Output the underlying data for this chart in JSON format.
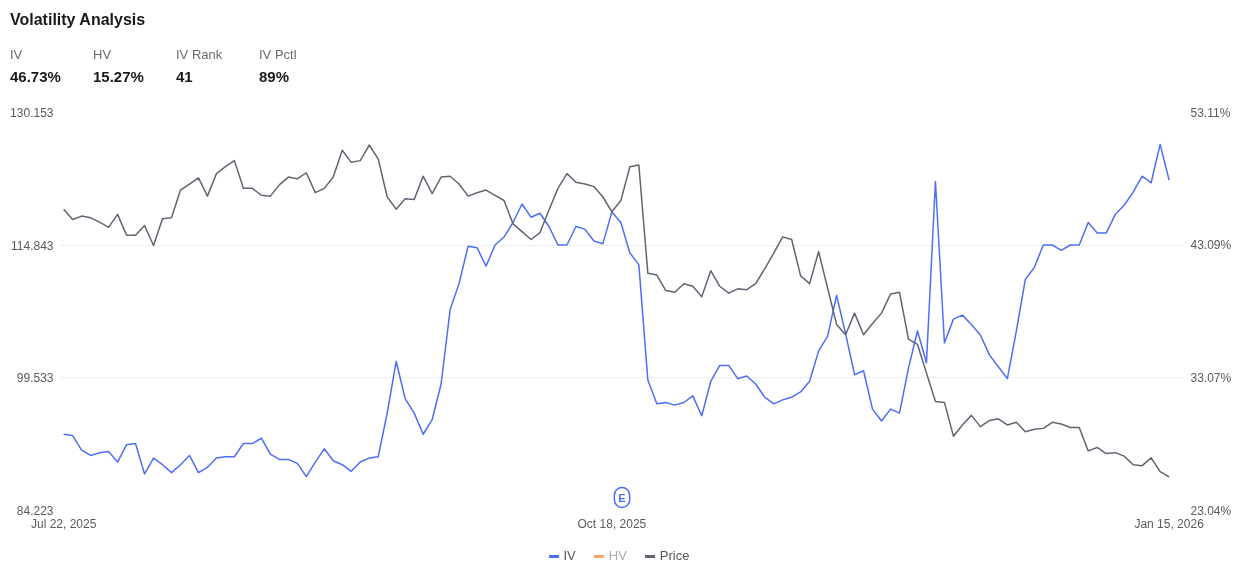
{
  "chart_data": {
    "type": "line",
    "title": "Volatility Analysis",
    "annotations": [
      "IV",
      "46.73%",
      "HV",
      "15.27%",
      "IV Rank",
      "41",
      "IV Pctl",
      "89%",
      {
        "text": "E"
      }
    ],
    "categories": [
      "Jul 22, 2025",
      null,
      null,
      null,
      null,
      null,
      null,
      null,
      null,
      null,
      null,
      null,
      null,
      null,
      null,
      null,
      null,
      null,
      null,
      null,
      null,
      null,
      null,
      null,
      null,
      null,
      null,
      null,
      null,
      null,
      null,
      null,
      null,
      null,
      null,
      null,
      null,
      null,
      null,
      null,
      null,
      null,
      null,
      null,
      null,
      null,
      null,
      null,
      null,
      null,
      null,
      null,
      null,
      null,
      null,
      null,
      null,
      null,
      null,
      null,
      null,
      "Oct 18, 2025",
      null,
      null,
      null,
      null,
      null,
      null,
      null,
      null,
      null,
      null,
      null,
      null,
      null,
      null,
      null,
      null,
      null,
      null,
      null,
      null,
      null,
      null,
      null,
      null,
      null,
      null,
      null,
      null,
      null,
      null,
      null,
      null,
      null,
      null,
      null,
      null,
      null,
      null,
      null,
      null,
      null,
      null,
      null,
      null,
      null,
      null,
      null,
      null,
      null,
      null,
      null,
      null,
      null,
      null,
      null,
      null,
      null,
      null,
      null,
      null,
      null,
      "Jan 15, 2026"
    ],
    "ylim": [
      84.223,
      130.153
    ],
    "yticks": [
      84.223,
      99.533,
      114.843,
      130.153
    ],
    "y2lim": [
      23.04,
      53.11
    ],
    "y2ticks": [
      {
        "value": 23.04,
        "label": "23.04%"
      },
      {
        "value": 33.07,
        "label": "33.07%"
      },
      {
        "value": 43.09,
        "label": "43.09%"
      },
      {
        "value": 53.11,
        "label": "53.11%"
      }
    ],
    "series": [
      {
        "name": "IV",
        "color": "#4d6ef5",
        "axis": "y2",
        "values": [
          28.8,
          28.7,
          27.6,
          27.2,
          27.4,
          27.5,
          26.7,
          28.0,
          28.1,
          25.8,
          27.0,
          26.5,
          25.9,
          26.5,
          27.2,
          25.9,
          26.3,
          27.0,
          27.1,
          27.1,
          28.1,
          28.1,
          28.5,
          27.3,
          26.9,
          26.9,
          26.6,
          25.6,
          26.7,
          27.7,
          26.8,
          26.5,
          26.0,
          26.7,
          27.0,
          27.1,
          30.4,
          34.3,
          31.5,
          30.4,
          28.8,
          29.9,
          32.6,
          38.2,
          40.2,
          43.0,
          42.9,
          41.5,
          43.1,
          43.7,
          44.8,
          46.2,
          45.2,
          45.5,
          44.5,
          43.1,
          43.1,
          44.5,
          44.3,
          43.4,
          43.2,
          45.6,
          44.8,
          42.5,
          41.6,
          32.9,
          31.1,
          31.2,
          31.0,
          31.2,
          31.7,
          30.2,
          32.8,
          34.0,
          34.0,
          33.0,
          33.2,
          32.6,
          31.6,
          31.1,
          31.4,
          31.6,
          32.0,
          32.8,
          35.1,
          36.2,
          39.3,
          36.4,
          33.3,
          33.6,
          30.7,
          29.8,
          30.7,
          30.4,
          33.8,
          36.6,
          34.2,
          47.9,
          35.7,
          37.5,
          37.8,
          37.1,
          36.3,
          34.8,
          33.9,
          33.0,
          36.6,
          40.5,
          41.4,
          43.1,
          43.1,
          42.7,
          43.1,
          43.1,
          44.8,
          44.0,
          44.0,
          45.4,
          46.1,
          47.1,
          48.3,
          47.8,
          50.7,
          48.0
        ]
      },
      {
        "name": "HV",
        "color": "#f5a671",
        "axis": "y2",
        "values": [
          null,
          null,
          null,
          null,
          null,
          null,
          null,
          null,
          null,
          null,
          null,
          null,
          null,
          null,
          null,
          null,
          null,
          null,
          null,
          null,
          null,
          null,
          null,
          null,
          null,
          null,
          null,
          null,
          null,
          null,
          null,
          null,
          null,
          null,
          null,
          null,
          null,
          null,
          null,
          null,
          null,
          null,
          null,
          null,
          null,
          null,
          null,
          null,
          null,
          null,
          null,
          null,
          null,
          null,
          null,
          null,
          null,
          null,
          null,
          null,
          null,
          null,
          null,
          null,
          null,
          null,
          null,
          null,
          null,
          null,
          null,
          null,
          null,
          null,
          null,
          null,
          null,
          null,
          null,
          null,
          null,
          null,
          null,
          null,
          null,
          null,
          null,
          null,
          null,
          null,
          null,
          null,
          null,
          null,
          null,
          null,
          null,
          null,
          null,
          null,
          null,
          null,
          null,
          null,
          null,
          null,
          null,
          null,
          null,
          null,
          null,
          null,
          null,
          null,
          null,
          null,
          null,
          null,
          null,
          null,
          null,
          null,
          null,
          null
        ]
      },
      {
        "name": "Price",
        "color": "#5f6672",
        "values": [
          119.0,
          117.8,
          118.2,
          118.0,
          117.5,
          116.9,
          118.4,
          116.0,
          116.0,
          117.1,
          114.8,
          117.9,
          118.0,
          121.2,
          121.9,
          122.6,
          120.5,
          123.1,
          123.9,
          124.6,
          121.4,
          121.4,
          120.6,
          120.5,
          121.8,
          122.7,
          122.5,
          123.2,
          120.9,
          121.4,
          122.7,
          125.8,
          124.4,
          124.6,
          126.4,
          124.8,
          120.4,
          119.0,
          120.2,
          120.1,
          122.8,
          120.8,
          122.7,
          122.8,
          121.9,
          120.5,
          120.9,
          121.2,
          120.6,
          120.0,
          117.3,
          116.4,
          115.5,
          116.3,
          118.9,
          121.4,
          123.1,
          122.1,
          121.9,
          121.6,
          120.4,
          118.7,
          120.0,
          123.9,
          124.1,
          111.6,
          111.4,
          109.6,
          109.4,
          110.4,
          110.1,
          108.9,
          111.9,
          110.1,
          109.3,
          109.8,
          109.7,
          110.4,
          112.1,
          113.9,
          115.8,
          115.5,
          111.3,
          110.4,
          114.1,
          109.9,
          105.7,
          104.5,
          107.0,
          104.5,
          105.8,
          107.0,
          109.2,
          109.4,
          104.0,
          103.4,
          100.1,
          96.8,
          96.7,
          92.8,
          94.1,
          95.2,
          93.9,
          94.6,
          94.8,
          94.1,
          94.4,
          93.3,
          93.6,
          93.7,
          94.4,
          94.2,
          93.8,
          93.8,
          91.1,
          91.5,
          90.8,
          90.9,
          90.5,
          89.5,
          89.4,
          90.3,
          88.7,
          88.1
        ]
      }
    ],
    "grid": "y",
    "legend": "bottom"
  }
}
